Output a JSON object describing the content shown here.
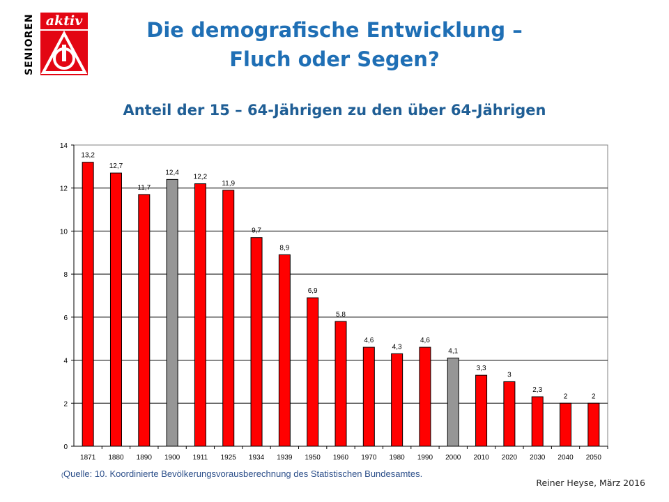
{
  "header": {
    "logo_text_vertical": "SENIOREN",
    "logo_text_badge": "aktiv",
    "logo_mark": "IG Metall logo",
    "title_line1": "Die demografische Entwicklung –",
    "title_line2": "Fluch oder Segen?"
  },
  "chart_data": {
    "type": "bar",
    "title": "Anteil der 15 – 64-Jährigen zu den über 64-Jährigen",
    "xlabel": "",
    "ylabel": "",
    "ylim": [
      0,
      14
    ],
    "yticks": [
      0,
      2,
      4,
      6,
      8,
      10,
      12,
      14
    ],
    "grid": true,
    "categories": [
      "1871",
      "1880",
      "1890",
      "1900",
      "1911",
      "1925",
      "1934",
      "1939",
      "1950",
      "1960",
      "1970",
      "1980",
      "1990",
      "2000",
      "2010",
      "2020",
      "2030",
      "2040",
      "2050"
    ],
    "values": [
      13.2,
      12.7,
      11.7,
      12.4,
      12.2,
      11.9,
      9.7,
      8.9,
      6.9,
      5.8,
      4.6,
      4.3,
      4.6,
      4.1,
      3.3,
      3,
      2.3,
      2,
      2
    ],
    "data_labels": [
      "13,2",
      "12,7",
      "11,7",
      "12,4",
      "12,2",
      "11,9",
      "9,7",
      "8,9",
      "6,9",
      "5,8",
      "4,6",
      "4,3",
      "4,6",
      "4,1",
      "3,3",
      "3",
      "2,3",
      "2",
      "2"
    ],
    "bar_colors": [
      "#ff0000",
      "#ff0000",
      "#ff0000",
      "#969696",
      "#ff0000",
      "#ff0000",
      "#ff0000",
      "#ff0000",
      "#ff0000",
      "#ff0000",
      "#ff0000",
      "#ff0000",
      "#ff0000",
      "#969696",
      "#ff0000",
      "#ff0000",
      "#ff0000",
      "#ff0000",
      "#ff0000"
    ]
  },
  "footer": {
    "source_paren": "(",
    "source": "Quelle: 10. Koordinierte Bevölkerungsvorausberechnung des Statistischen Bundesamtes.",
    "author": "Reiner Heyse, März 2016"
  },
  "colors": {
    "title": "#1f6fb5",
    "subtitle": "#1f5e95",
    "bar_red": "#ff0000",
    "bar_gray": "#969696",
    "logo_red": "#e30613"
  }
}
